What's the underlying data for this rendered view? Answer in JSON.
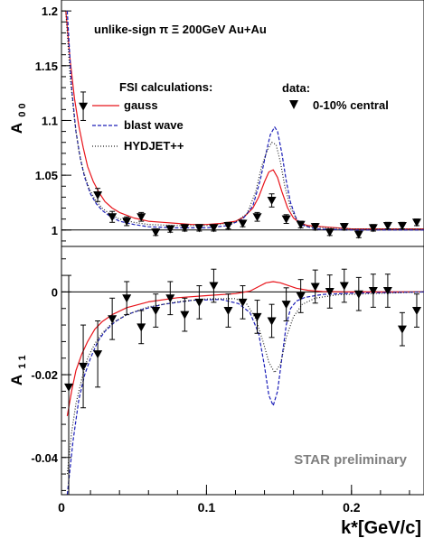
{
  "chart_data": [
    {
      "type": "line",
      "title": "unlike-sign π Ξ 200GeV Au+Au",
      "ylabel_main": "A",
      "ylabel_sub": "0 0",
      "xlim": [
        0,
        0.25
      ],
      "ylim": [
        0.985,
        1.21
      ],
      "yticks": [
        {
          "value": 1,
          "label": "1"
        },
        {
          "value": 1.05,
          "label": "1.05"
        },
        {
          "value": 1.1,
          "label": "1.1"
        },
        {
          "value": 1.15,
          "label": "1.15"
        },
        {
          "value": 1.2,
          "label": "1.2"
        }
      ],
      "reference_line": 1,
      "legend_title": "FSI calculations:",
      "legend_entries": [
        "gauss",
        "blast wave",
        "HYDJET++"
      ],
      "data_legend_title": "data:",
      "data_legend_entry": "0-10% central",
      "series": [
        {
          "name": "gauss",
          "style": "solid",
          "color": "#e8141b",
          "x": [
            0.003,
            0.006,
            0.009,
            0.012,
            0.015,
            0.018,
            0.022,
            0.026,
            0.03,
            0.035,
            0.04,
            0.05,
            0.06,
            0.07,
            0.08,
            0.09,
            0.1,
            0.11,
            0.12,
            0.126,
            0.132,
            0.136,
            0.14,
            0.143,
            0.146,
            0.149,
            0.152,
            0.156,
            0.16,
            0.165,
            0.17,
            0.18,
            0.2,
            0.22,
            0.25
          ],
          "y": [
            1.2,
            1.155,
            1.12,
            1.095,
            1.075,
            1.058,
            1.044,
            1.034,
            1.026,
            1.02,
            1.016,
            1.011,
            1.008,
            1.007,
            1.006,
            1.005,
            1.005,
            1.006,
            1.008,
            1.012,
            1.02,
            1.03,
            1.044,
            1.053,
            1.055,
            1.048,
            1.035,
            1.02,
            1.011,
            1.006,
            1.004,
            1.003,
            1.001,
            1.001,
            1.001
          ]
        },
        {
          "name": "blast wave",
          "style": "dashed",
          "color": "#1c1fb8",
          "x": [
            0.004,
            0.007,
            0.01,
            0.013,
            0.016,
            0.02,
            0.024,
            0.028,
            0.033,
            0.04,
            0.05,
            0.06,
            0.08,
            0.1,
            0.115,
            0.125,
            0.132,
            0.137,
            0.141,
            0.144,
            0.147,
            0.149,
            0.152,
            0.155,
            0.158,
            0.162,
            0.167,
            0.175,
            0.2,
            0.25
          ],
          "y": [
            1.2,
            1.13,
            1.09,
            1.065,
            1.048,
            1.033,
            1.024,
            1.018,
            1.013,
            1.008,
            1.005,
            1.003,
            1.002,
            1.002,
            1.004,
            1.01,
            1.022,
            1.045,
            1.07,
            1.087,
            1.094,
            1.09,
            1.07,
            1.045,
            1.025,
            1.01,
            1.004,
            1.001,
            1.0,
            1.0
          ]
        },
        {
          "name": "HYDJET++",
          "style": "dotted",
          "color": "#222222",
          "x": [
            0.003,
            0.006,
            0.009,
            0.012,
            0.015,
            0.019,
            0.023,
            0.028,
            0.034,
            0.04,
            0.05,
            0.06,
            0.08,
            0.1,
            0.12,
            0.128,
            0.134,
            0.138,
            0.142,
            0.145,
            0.148,
            0.151,
            0.154,
            0.158,
            0.163,
            0.17,
            0.2,
            0.25
          ],
          "y": [
            1.2,
            1.14,
            1.1,
            1.072,
            1.054,
            1.038,
            1.028,
            1.02,
            1.014,
            1.01,
            1.007,
            1.005,
            1.004,
            1.004,
            1.007,
            1.015,
            1.035,
            1.058,
            1.073,
            1.08,
            1.078,
            1.062,
            1.04,
            1.02,
            1.008,
            1.003,
            1.001,
            1.001
          ]
        }
      ],
      "data_points": {
        "name": "0-10% central",
        "x": [
          0.015,
          0.025,
          0.035,
          0.045,
          0.055,
          0.065,
          0.075,
          0.085,
          0.095,
          0.105,
          0.115,
          0.125,
          0.135,
          0.145,
          0.155,
          0.165,
          0.175,
          0.185,
          0.195,
          0.205,
          0.215,
          0.225,
          0.235,
          0.245
        ],
        "y": [
          1.113,
          1.032,
          1.012,
          1.008,
          1.012,
          0.998,
          1.001,
          1.002,
          1.002,
          1.002,
          1.004,
          1.006,
          1.012,
          1.027,
          1.01,
          1.005,
          1.003,
          0.998,
          1.003,
          0.996,
          1.002,
          1.004,
          1.004,
          1.007
        ],
        "err": [
          0.013,
          0.006,
          0.005,
          0.004,
          0.004,
          0.003,
          0.003,
          0.003,
          0.003,
          0.003,
          0.003,
          0.003,
          0.004,
          0.006,
          0.004,
          0.003,
          0.003,
          0.003,
          0.003,
          0.003,
          0.003,
          0.003,
          0.003,
          0.003
        ]
      }
    },
    {
      "type": "line",
      "ylabel_main": "A",
      "ylabel_sub": "1 1",
      "xlabel": "k*[GeV/c]",
      "xlim": [
        0,
        0.25
      ],
      "ylim": [
        -0.049,
        0.011
      ],
      "yticks": [
        {
          "value": 0,
          "label": "0"
        },
        {
          "value": -0.02,
          "label": "-0.02"
        },
        {
          "value": -0.04,
          "label": "-0.04"
        }
      ],
      "xticks": [
        {
          "value": 0,
          "label": "0"
        },
        {
          "value": 0.1,
          "label": "0.1"
        },
        {
          "value": 0.2,
          "label": "0.2"
        }
      ],
      "reference_line": 0,
      "annotation": "STAR preliminary",
      "series": [
        {
          "name": "gauss",
          "style": "solid",
          "color": "#e8141b",
          "x": [
            0.004,
            0.007,
            0.01,
            0.014,
            0.018,
            0.023,
            0.028,
            0.035,
            0.045,
            0.06,
            0.08,
            0.1,
            0.12,
            0.13,
            0.136,
            0.141,
            0.146,
            0.151,
            0.156,
            0.162,
            0.17,
            0.18,
            0.2,
            0.25
          ],
          "y": [
            -0.03,
            -0.024,
            -0.019,
            -0.015,
            -0.012,
            -0.009,
            -0.0072,
            -0.0055,
            -0.0038,
            -0.0024,
            -0.0014,
            -0.0009,
            -0.0004,
            0.0002,
            0.0013,
            0.0022,
            0.0025,
            0.0022,
            0.0016,
            0.0009,
            0.0004,
            0.0001,
            0.0,
            0.0
          ]
        },
        {
          "name": "blast wave",
          "style": "dashed",
          "color": "#1c1fb8",
          "x": [
            0.004,
            0.008,
            0.012,
            0.016,
            0.02,
            0.025,
            0.03,
            0.037,
            0.045,
            0.055,
            0.07,
            0.09,
            0.11,
            0.122,
            0.13,
            0.136,
            0.14,
            0.143,
            0.146,
            0.149,
            0.152,
            0.155,
            0.158,
            0.162,
            0.168,
            0.18,
            0.2,
            0.25
          ],
          "y": [
            -0.052,
            -0.036,
            -0.026,
            -0.02,
            -0.016,
            -0.012,
            -0.0095,
            -0.0072,
            -0.0055,
            -0.0043,
            -0.003,
            -0.002,
            -0.0018,
            -0.0028,
            -0.005,
            -0.01,
            -0.018,
            -0.025,
            -0.0275,
            -0.024,
            -0.016,
            -0.008,
            -0.004,
            -0.0022,
            -0.0013,
            -0.0006,
            -0.0003,
            0.0
          ]
        },
        {
          "name": "HYDJET++",
          "style": "dotted",
          "color": "#222222",
          "x": [
            0.004,
            0.007,
            0.01,
            0.014,
            0.018,
            0.023,
            0.028,
            0.035,
            0.045,
            0.06,
            0.08,
            0.1,
            0.12,
            0.128,
            0.134,
            0.139,
            0.143,
            0.147,
            0.151,
            0.155,
            0.16,
            0.166,
            0.175,
            0.19,
            0.25
          ],
          "y": [
            -0.044,
            -0.034,
            -0.027,
            -0.021,
            -0.016,
            -0.0125,
            -0.01,
            -0.0075,
            -0.0055,
            -0.0036,
            -0.0024,
            -0.0017,
            -0.0016,
            -0.003,
            -0.0065,
            -0.012,
            -0.017,
            -0.0195,
            -0.0175,
            -0.011,
            -0.006,
            -0.003,
            -0.0015,
            -0.0007,
            0.0
          ]
        }
      ],
      "data_points": {
        "name": "0-10% central",
        "x": [
          0.005,
          0.015,
          0.025,
          0.035,
          0.045,
          0.055,
          0.065,
          0.075,
          0.085,
          0.095,
          0.105,
          0.115,
          0.125,
          0.135,
          0.145,
          0.155,
          0.165,
          0.175,
          0.185,
          0.195,
          0.205,
          0.215,
          0.225,
          0.235,
          0.245
        ],
        "y": [
          -0.023,
          -0.018,
          -0.015,
          -0.0065,
          -0.0015,
          -0.0085,
          -0.0045,
          -0.0015,
          -0.0055,
          -0.0025,
          0.0015,
          -0.0045,
          -0.0025,
          -0.006,
          -0.007,
          -0.003,
          -0.001,
          0.0013,
          0.0001,
          0.0015,
          -0.0005,
          0.0003,
          0.0003,
          -0.009,
          -0.0045
        ],
        "err": [
          0.027,
          0.01,
          0.008,
          0.005,
          0.004,
          0.004,
          0.004,
          0.004,
          0.004,
          0.004,
          0.004,
          0.004,
          0.004,
          0.004,
          0.004,
          0.004,
          0.004,
          0.004,
          0.004,
          0.004,
          0.004,
          0.004,
          0.004,
          0.004,
          0.004
        ]
      }
    }
  ]
}
